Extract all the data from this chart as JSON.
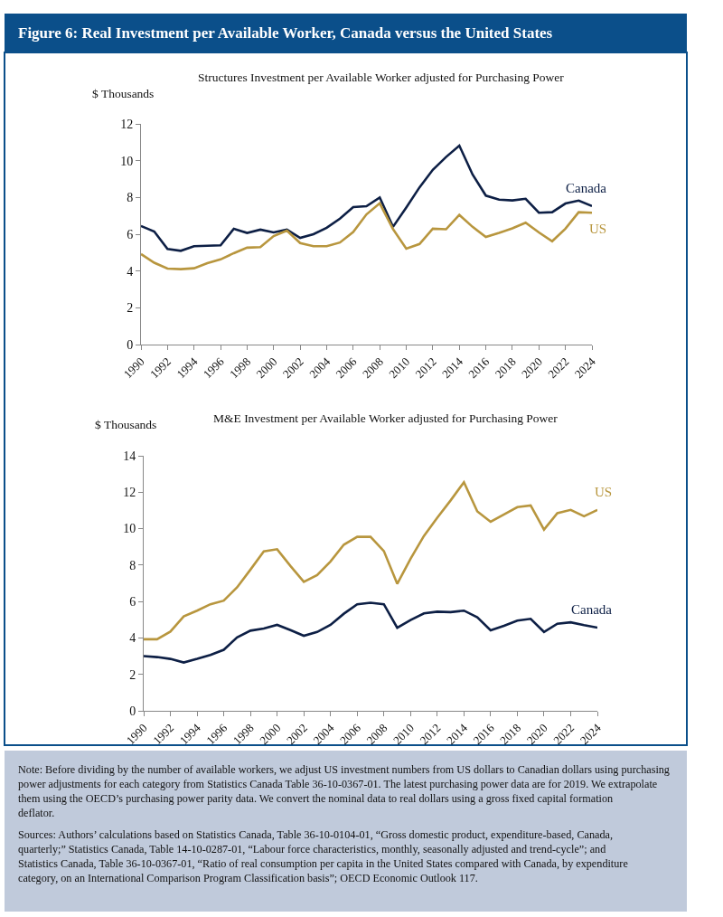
{
  "chart_data": [
    {
      "type": "line",
      "title": "Figure 6: Real Investment per Available Worker, Canada versus the United States",
      "subtitle": "Structures Investment per Available Worker adjusted for Purchasing Power",
      "ylabel": "$ Thousands",
      "x": [
        1990,
        1991,
        1992,
        1993,
        1994,
        1995,
        1996,
        1997,
        1998,
        1999,
        2000,
        2001,
        2002,
        2003,
        2004,
        2005,
        2006,
        2007,
        2008,
        2009,
        2010,
        2011,
        2012,
        2013,
        2014,
        2015,
        2016,
        2017,
        2018,
        2019,
        2020,
        2021,
        2022,
        2023,
        2024
      ],
      "series": [
        {
          "name": "Canada",
          "color": "#0d1f45",
          "values": [
            6.45,
            6.15,
            5.2,
            5.1,
            5.35,
            5.37,
            5.4,
            6.3,
            6.07,
            6.25,
            6.1,
            6.25,
            5.8,
            6.0,
            6.35,
            6.85,
            7.48,
            7.52,
            8.0,
            6.4,
            7.45,
            8.55,
            9.5,
            10.2,
            10.82,
            9.25,
            8.1,
            7.88,
            7.84,
            7.93,
            7.17,
            7.2,
            7.67,
            7.83,
            7.53
          ]
        },
        {
          "name": "US",
          "color": "#b8963e",
          "values": [
            4.92,
            4.45,
            4.13,
            4.1,
            4.15,
            4.43,
            4.63,
            4.97,
            5.27,
            5.3,
            5.9,
            6.2,
            5.52,
            5.35,
            5.35,
            5.55,
            6.12,
            7.08,
            7.68,
            6.28,
            5.22,
            5.47,
            6.3,
            6.27,
            7.05,
            6.4,
            5.85,
            6.07,
            6.32,
            6.63,
            6.1,
            5.62,
            6.3,
            7.2,
            7.17
          ]
        }
      ],
      "xlim": [
        1990,
        2024
      ],
      "xticks": [
        1990,
        1992,
        1994,
        1996,
        1998,
        2000,
        2002,
        2004,
        2006,
        2008,
        2010,
        2012,
        2014,
        2016,
        2018,
        2020,
        2022,
        2024
      ],
      "ylim": [
        0,
        12
      ],
      "yticks": [
        0,
        2,
        4,
        6,
        8,
        10,
        12
      ],
      "legend": false
    },
    {
      "type": "line",
      "title": "M&E Investment per Available Worker adjusted for Purchasing Power",
      "ylabel": "$ Thousands",
      "x": [
        1990,
        1991,
        1992,
        1993,
        1994,
        1995,
        1996,
        1997,
        1998,
        1999,
        2000,
        2001,
        2002,
        2003,
        2004,
        2005,
        2006,
        2007,
        2008,
        2009,
        2010,
        2011,
        2012,
        2013,
        2014,
        2015,
        2016,
        2017,
        2018,
        2019,
        2020,
        2021,
        2022,
        2023,
        2024
      ],
      "series": [
        {
          "name": "US",
          "color": "#b8963e",
          "values": [
            3.93,
            3.93,
            4.35,
            5.18,
            5.5,
            5.85,
            6.05,
            6.78,
            7.75,
            8.75,
            8.87,
            7.95,
            7.08,
            7.45,
            8.2,
            9.12,
            9.55,
            9.55,
            8.77,
            6.97,
            8.35,
            9.6,
            10.6,
            11.55,
            12.55,
            10.95,
            10.38,
            10.78,
            11.18,
            11.27,
            9.95,
            10.85,
            11.03,
            10.68,
            11.03
          ]
        },
        {
          "name": "Canada",
          "color": "#0d1f45",
          "values": [
            3.0,
            2.95,
            2.85,
            2.65,
            2.85,
            3.07,
            3.35,
            4.03,
            4.4,
            4.52,
            4.72,
            4.43,
            4.12,
            4.33,
            4.72,
            5.33,
            5.85,
            5.93,
            5.85,
            4.56,
            4.98,
            5.35,
            5.44,
            5.42,
            5.5,
            5.13,
            4.42,
            4.67,
            4.95,
            5.05,
            4.33,
            4.78,
            4.86,
            4.7,
            4.57
          ]
        }
      ],
      "xlim": [
        1990,
        2024
      ],
      "xticks": [
        1990,
        1992,
        1994,
        1996,
        1998,
        2000,
        2002,
        2004,
        2006,
        2008,
        2010,
        2012,
        2014,
        2016,
        2018,
        2020,
        2022,
        2024
      ],
      "ylim": [
        0,
        14
      ],
      "yticks": [
        0,
        2,
        4,
        6,
        8,
        10,
        12,
        14
      ],
      "legend": false,
      "annotations": [
        "Note: Before dividing by the number of available workers, we adjust US investment numbers from US dollars to Canadian dollars using purchasing power adjustments for each category from Statistics Canada Table 36-10-0367-01. The latest purchasing power data are for 2019. We extrapolate them using the OECD’s purchasing power parity data. We convert the nominal data to real dollars using a gross fixed capital formation deflator.",
        "Sources: Authors’ calculations based on Statistics Canada, Table 36-10-0104-01, “Gross domestic product, expenditure-based, Canada, quarterly;” Statistics Canada, Table 14-10-0287-01, “Labour force characteristics, monthly, seasonally adjusted and trend-cycle”; and Statistics Canada, Table 36-10-0367-01, “Ratio of real consumption per capita in the United States compared with Canada, by expenditure category, on an International Comparison Program Classification basis”; OECD Economic Outlook 117."
      ]
    }
  ]
}
